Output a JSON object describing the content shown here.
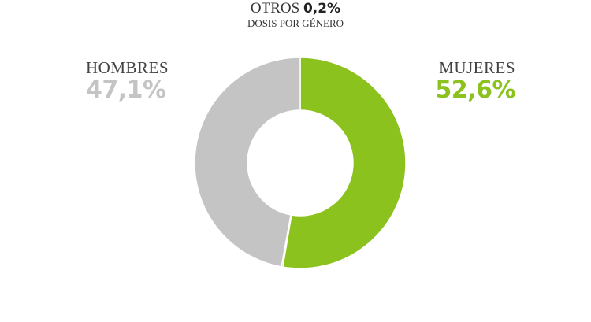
{
  "chart_data": {
    "type": "pie",
    "title": "DOSIS POR GÉNERO",
    "slices": [
      {
        "label": "MUJERES",
        "value": 52.6,
        "display": "52,6%",
        "color": "#8cc21e"
      },
      {
        "label": "OTROS",
        "value": 0.2,
        "display": "0,2%",
        "color": "#111111"
      },
      {
        "label": "HOMBRES",
        "value": 47.1,
        "display": "47,1%",
        "color": "#c4c4c4"
      }
    ],
    "donut": true,
    "start": "top",
    "direction": "clockwise"
  }
}
